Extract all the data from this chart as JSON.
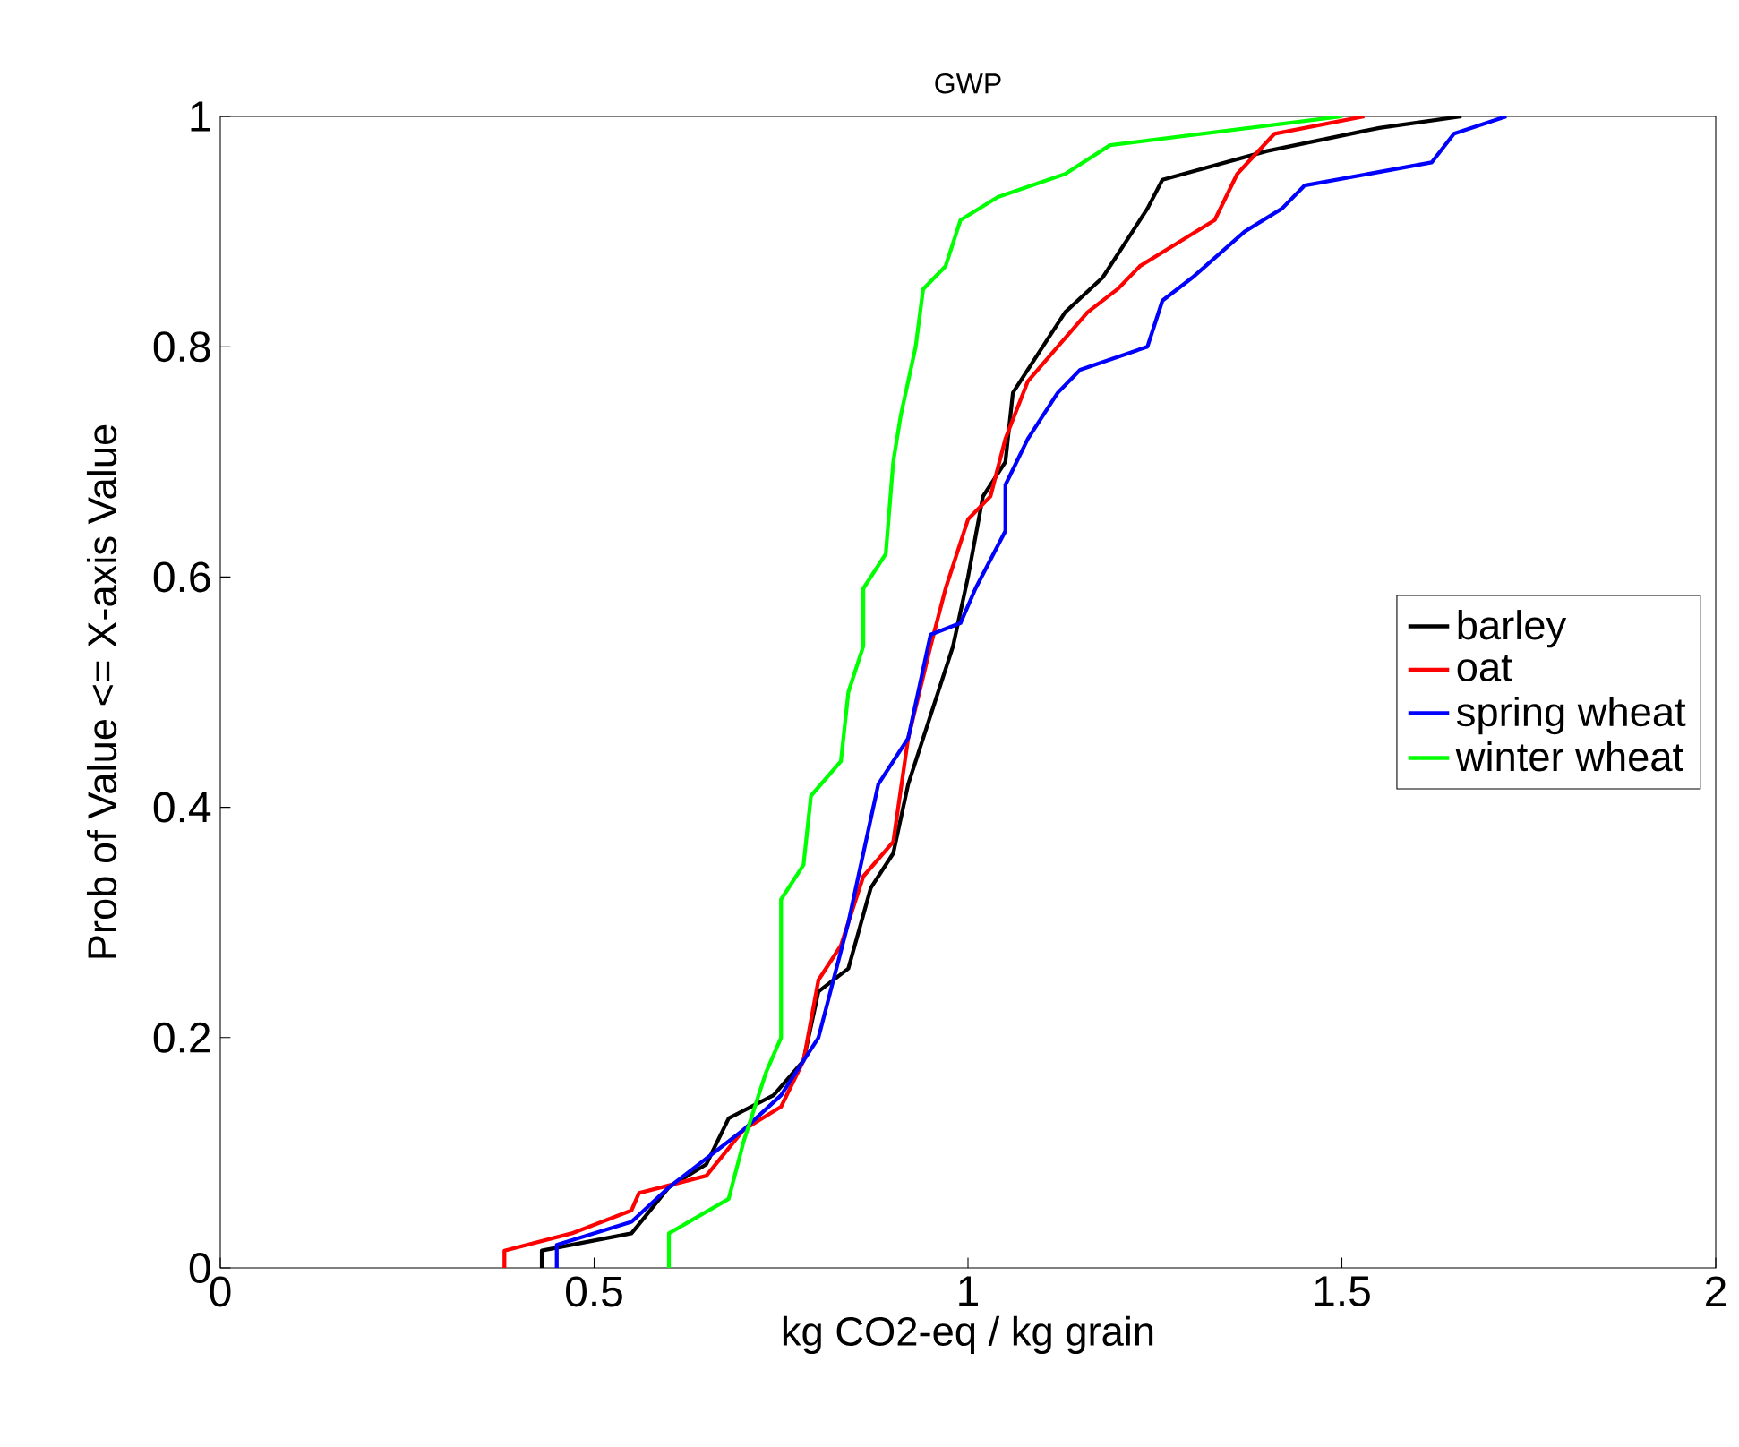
{
  "chart_data": {
    "type": "line",
    "title": "GWP",
    "xlabel": "kg CO2-eq / kg grain",
    "ylabel": "Prob of Value <= X-axis Value",
    "xlim": [
      0,
      2
    ],
    "ylim": [
      0,
      1
    ],
    "xticks": [
      0,
      0.5,
      1,
      1.5,
      2
    ],
    "yticks": [
      0,
      0.2,
      0.4,
      0.6,
      0.8,
      1
    ],
    "legend": "right",
    "line_style": "solid",
    "marker": "none",
    "series": [
      {
        "name": "barley",
        "color": "#000000",
        "x": [
          0.43,
          0.43,
          0.55,
          0.6,
          0.65,
          0.68,
          0.74,
          0.78,
          0.8,
          0.84,
          0.87,
          0.9,
          0.92,
          0.95,
          0.98,
          1.0,
          1.02,
          1.05,
          1.06,
          1.1,
          1.13,
          1.18,
          1.22,
          1.24,
          1.26,
          1.4,
          1.55,
          1.66
        ],
        "values": [
          0,
          0.015,
          0.03,
          0.07,
          0.09,
          0.13,
          0.15,
          0.18,
          0.24,
          0.26,
          0.33,
          0.36,
          0.42,
          0.48,
          0.54,
          0.6,
          0.67,
          0.7,
          0.76,
          0.8,
          0.83,
          0.86,
          0.9,
          0.92,
          0.945,
          0.97,
          0.99,
          1.0
        ]
      },
      {
        "name": "oat",
        "color": "#ff0000",
        "x": [
          0.38,
          0.38,
          0.47,
          0.55,
          0.56,
          0.65,
          0.7,
          0.75,
          0.78,
          0.8,
          0.83,
          0.86,
          0.9,
          0.92,
          0.95,
          0.97,
          1.0,
          1.03,
          1.05,
          1.08,
          1.12,
          1.16,
          1.2,
          1.23,
          1.28,
          1.33,
          1.36,
          1.41,
          1.53
        ],
        "values": [
          0,
          0.015,
          0.03,
          0.05,
          0.065,
          0.08,
          0.12,
          0.14,
          0.18,
          0.25,
          0.28,
          0.34,
          0.37,
          0.46,
          0.54,
          0.59,
          0.65,
          0.67,
          0.72,
          0.77,
          0.8,
          0.83,
          0.85,
          0.87,
          0.89,
          0.91,
          0.95,
          0.985,
          1.0
        ]
      },
      {
        "name": "spring wheat",
        "color": "#0000ff",
        "x": [
          0.45,
          0.45,
          0.55,
          0.6,
          0.62,
          0.7,
          0.75,
          0.8,
          0.84,
          0.86,
          0.88,
          0.92,
          0.95,
          0.99,
          1.01,
          1.05,
          1.05,
          1.08,
          1.12,
          1.15,
          1.24,
          1.26,
          1.3,
          1.37,
          1.42,
          1.45,
          1.62,
          1.65,
          1.72
        ],
        "values": [
          0,
          0.02,
          0.04,
          0.07,
          0.08,
          0.12,
          0.15,
          0.2,
          0.3,
          0.36,
          0.42,
          0.46,
          0.55,
          0.56,
          0.59,
          0.64,
          0.68,
          0.72,
          0.76,
          0.78,
          0.8,
          0.84,
          0.86,
          0.9,
          0.92,
          0.94,
          0.96,
          0.985,
          1.0
        ]
      },
      {
        "name": "winter wheat",
        "color": "#00ff00",
        "x": [
          0.6,
          0.6,
          0.68,
          0.7,
          0.73,
          0.75,
          0.75,
          0.78,
          0.79,
          0.83,
          0.84,
          0.86,
          0.86,
          0.89,
          0.9,
          0.91,
          0.93,
          0.94,
          0.97,
          0.99,
          1.04,
          1.13,
          1.19,
          1.5
        ],
        "values": [
          0,
          0.03,
          0.06,
          0.11,
          0.17,
          0.2,
          0.32,
          0.35,
          0.41,
          0.44,
          0.5,
          0.54,
          0.59,
          0.62,
          0.7,
          0.74,
          0.8,
          0.85,
          0.87,
          0.91,
          0.93,
          0.95,
          0.975,
          1.0
        ]
      }
    ]
  }
}
